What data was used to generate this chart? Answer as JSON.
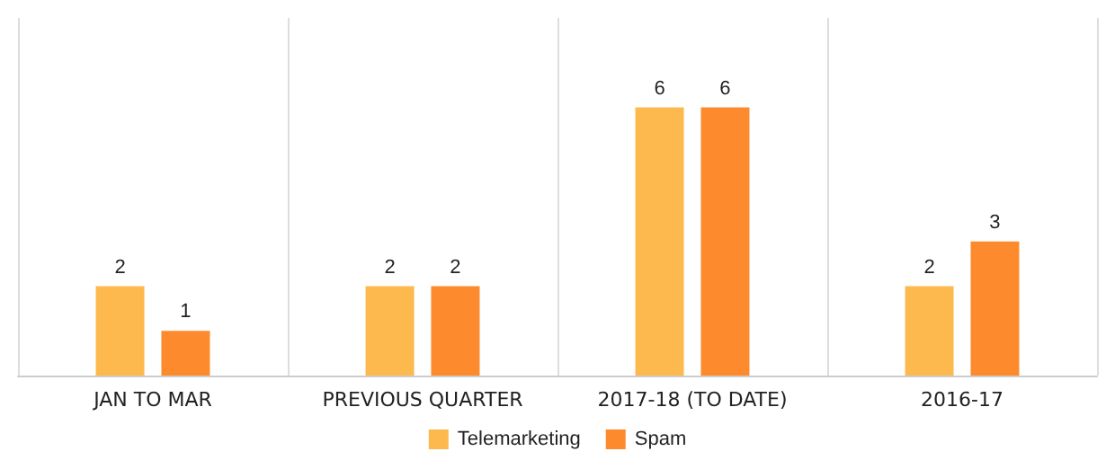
{
  "chart_data": {
    "type": "bar",
    "categories": [
      "JAN TO MAR",
      "PREVIOUS QUARTER",
      "2017-18 (TO DATE)",
      "2016-17"
    ],
    "series": [
      {
        "name": "Telemarketing",
        "color": "#fdb94e",
        "values": [
          2,
          2,
          6,
          2
        ]
      },
      {
        "name": "Spam",
        "color": "#fd8a2c",
        "values": [
          1,
          2,
          6,
          3
        ]
      }
    ],
    "data_labels": true,
    "grid": "x",
    "legend": "bottom"
  }
}
